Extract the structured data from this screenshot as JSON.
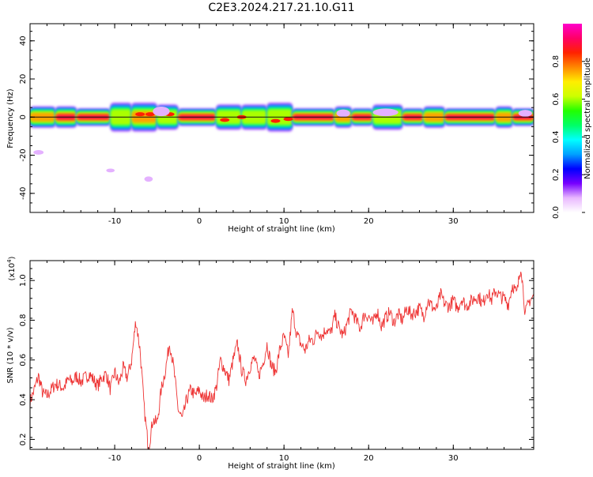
{
  "title": "C2E3.2024.217.21.10.G11",
  "colors": {
    "snr_line": "#ee3333",
    "frame": "#000000"
  },
  "chart_data": [
    {
      "type": "heatmap",
      "title": "C2E3.2024.217.21.10.G11",
      "xlabel": "Height of straight line (km)",
      "ylabel": "Frequency (Hz)",
      "xlim": [
        -20,
        39.5
      ],
      "ylim": [
        -50,
        49
      ],
      "x_ticks": [
        -10,
        0,
        10,
        20,
        30
      ],
      "y_ticks": [
        -40,
        -20,
        0,
        20,
        40
      ],
      "colorbar": {
        "label": "Normalized spectral amplitude",
        "range": [
          0,
          1
        ],
        "ticks": [
          0.0,
          0.2,
          0.4,
          0.6,
          0.8
        ],
        "colors": [
          "#ffffff",
          "#e9b8ff",
          "#7700ff",
          "#0000ff",
          "#00a0ff",
          "#00ffff",
          "#00ff66",
          "#22ff00",
          "#ccff00",
          "#ffee00",
          "#ff8800",
          "#ff2200",
          "#ff0066",
          "#ff00cc"
        ]
      },
      "signal_band": {
        "frequency": 0,
        "segments": [
          {
            "x0": -20.0,
            "x1": -17.0,
            "amp": 0.75,
            "spread": 5
          },
          {
            "x0": -17.0,
            "x1": -14.5,
            "amp": 0.9,
            "spread": 5
          },
          {
            "x0": -14.5,
            "x1": -10.5,
            "amp": 0.95,
            "spread": 4
          },
          {
            "x0": -10.5,
            "x1": -8.0,
            "amp": 0.55,
            "spread": 7
          },
          {
            "x0": -8.0,
            "x1": -5.0,
            "amp": 0.7,
            "spread": 7
          },
          {
            "x0": -5.0,
            "x1": -2.5,
            "amp": 0.6,
            "spread": 6
          },
          {
            "x0": -2.5,
            "x1": 2.0,
            "amp": 0.85,
            "spread": 4
          },
          {
            "x0": 2.0,
            "x1": 5.0,
            "amp": 0.6,
            "spread": 6
          },
          {
            "x0": 5.0,
            "x1": 8.0,
            "amp": 0.65,
            "spread": 6
          },
          {
            "x0": 8.0,
            "x1": 11.0,
            "amp": 0.6,
            "spread": 7
          },
          {
            "x0": 11.0,
            "x1": 16.0,
            "amp": 0.95,
            "spread": 4
          },
          {
            "x0": 16.0,
            "x1": 18.0,
            "amp": 0.8,
            "spread": 5
          },
          {
            "x0": 18.0,
            "x1": 20.5,
            "amp": 0.9,
            "spread": 4
          },
          {
            "x0": 20.5,
            "x1": 24.0,
            "amp": 0.6,
            "spread": 6
          },
          {
            "x0": 24.0,
            "x1": 26.5,
            "amp": 0.9,
            "spread": 4
          },
          {
            "x0": 26.5,
            "x1": 29.0,
            "amp": 0.7,
            "spread": 5
          },
          {
            "x0": 29.0,
            "x1": 35.0,
            "amp": 0.95,
            "spread": 4
          },
          {
            "x0": 35.0,
            "x1": 37.0,
            "amp": 0.75,
            "spread": 5
          },
          {
            "x0": 37.0,
            "x1": 39.5,
            "amp": 0.9,
            "spread": 4
          }
        ],
        "hot_spots": [
          {
            "x": -7.0,
            "y": 1.5
          },
          {
            "x": -5.8,
            "y": 1.5
          },
          {
            "x": -3.5,
            "y": 1.5
          },
          {
            "x": 3.0,
            "y": -1.5
          },
          {
            "x": 5.0,
            "y": 0
          },
          {
            "x": 9.0,
            "y": -2
          },
          {
            "x": 10.5,
            "y": -1
          }
        ],
        "blobs": [
          {
            "x": -19.0,
            "y": -18.5,
            "rx": 0.6,
            "ry": 1.2
          },
          {
            "x": -10.5,
            "y": -28.0,
            "rx": 0.5,
            "ry": 1.0
          },
          {
            "x": -6.0,
            "y": -32.5,
            "rx": 0.5,
            "ry": 1.4
          },
          {
            "x": 22.0,
            "y": 2.5,
            "rx": 1.5,
            "ry": 2.0
          },
          {
            "x": 17.0,
            "y": 2.0,
            "rx": 0.8,
            "ry": 2.0
          },
          {
            "x": -4.5,
            "y": 3.0,
            "rx": 1.0,
            "ry": 2.5
          },
          {
            "x": 38.5,
            "y": 2.0,
            "rx": 0.8,
            "ry": 1.8
          }
        ]
      }
    },
    {
      "type": "line",
      "xlabel": "Height of straight line (km)",
      "ylabel": "SNR (10 * v/v)",
      "y_multiplier": "(x10",
      "y_multiplier_exp": "4",
      "y_multiplier_close": ")",
      "xlim": [
        -20,
        39.5
      ],
      "ylim": [
        1500,
        11000
      ],
      "x_ticks": [
        -10,
        0,
        10,
        20,
        30
      ],
      "y_ticks": [
        2000,
        4000,
        6000,
        8000,
        10000
      ],
      "y_tick_labels": [
        "0.2",
        "0.4",
        "0.6",
        "0.8",
        "1.0"
      ],
      "series": [
        {
          "x": [
            -20,
            -19.5,
            -19,
            -18.5,
            -18,
            -17.5,
            -17,
            -16.5,
            -16,
            -15.5,
            -15,
            -14.5,
            -14,
            -13.5,
            -13,
            -12.5,
            -12,
            -11.5,
            -11,
            -10.5,
            -10,
            -9.5,
            -9,
            -8.5,
            -8,
            -7.5,
            -7,
            -6.5,
            -6,
            -5.5,
            -5,
            -4.5,
            -4,
            -3.5,
            -3,
            -2.5,
            -2,
            -1.5,
            -1,
            -0.5,
            0,
            0.5,
            1,
            1.5,
            2,
            2.5,
            3,
            3.5,
            4,
            4.5,
            5,
            5.5,
            6,
            6.5,
            7,
            7.5,
            8,
            8.5,
            9,
            9.5,
            10,
            10.5,
            11,
            11.5,
            12,
            12.5,
            13,
            13.5,
            14,
            14.5,
            15,
            15.5,
            16,
            16.5,
            17,
            17.5,
            18,
            18.5,
            19,
            19.5,
            20,
            20.5,
            21,
            21.5,
            22,
            22.5,
            23,
            23.5,
            24,
            24.5,
            25,
            25.5,
            26,
            26.5,
            27,
            27.5,
            28,
            28.5,
            29,
            29.5,
            30,
            30.5,
            31,
            31.5,
            32,
            32.5,
            33,
            33.5,
            34,
            34.5,
            35,
            35.5,
            36,
            36.5,
            37,
            37.5,
            38,
            38.5,
            39,
            39.5
          ],
          "y": [
            3900,
            4500,
            5200,
            4300,
            4200,
            4500,
            4800,
            4700,
            4600,
            5000,
            4900,
            5200,
            4900,
            5100,
            5300,
            5000,
            4700,
            5100,
            5300,
            4500,
            5400,
            4800,
            5600,
            5100,
            6000,
            8000,
            6500,
            3500,
            1500,
            3000,
            2800,
            4500,
            5500,
            6900,
            5500,
            3500,
            3000,
            4000,
            4500,
            4200,
            4500,
            4000,
            4300,
            4000,
            4600,
            6000,
            5500,
            5000,
            6000,
            6800,
            5500,
            5000,
            5700,
            6100,
            5200,
            5800,
            6800,
            5700,
            5400,
            6500,
            7200,
            6200,
            8500,
            7300,
            6800,
            6500,
            7000,
            7000,
            7500,
            7200,
            7600,
            7300,
            8200,
            7600,
            7200,
            7900,
            8500,
            8000,
            7600,
            8300,
            8200,
            7800,
            8500,
            7700,
            8100,
            8400,
            7900,
            8300,
            8000,
            8600,
            8300,
            8400,
            8600,
            8200,
            9000,
            8700,
            8500,
            9300,
            8800,
            8700,
            9000,
            8600,
            9100,
            8700,
            8900,
            9100,
            9200,
            8800,
            9500,
            9000,
            9500,
            9200,
            9100,
            8800,
            9800,
            9300,
            10800,
            8300,
            9000,
            9200
          ]
        }
      ]
    }
  ]
}
